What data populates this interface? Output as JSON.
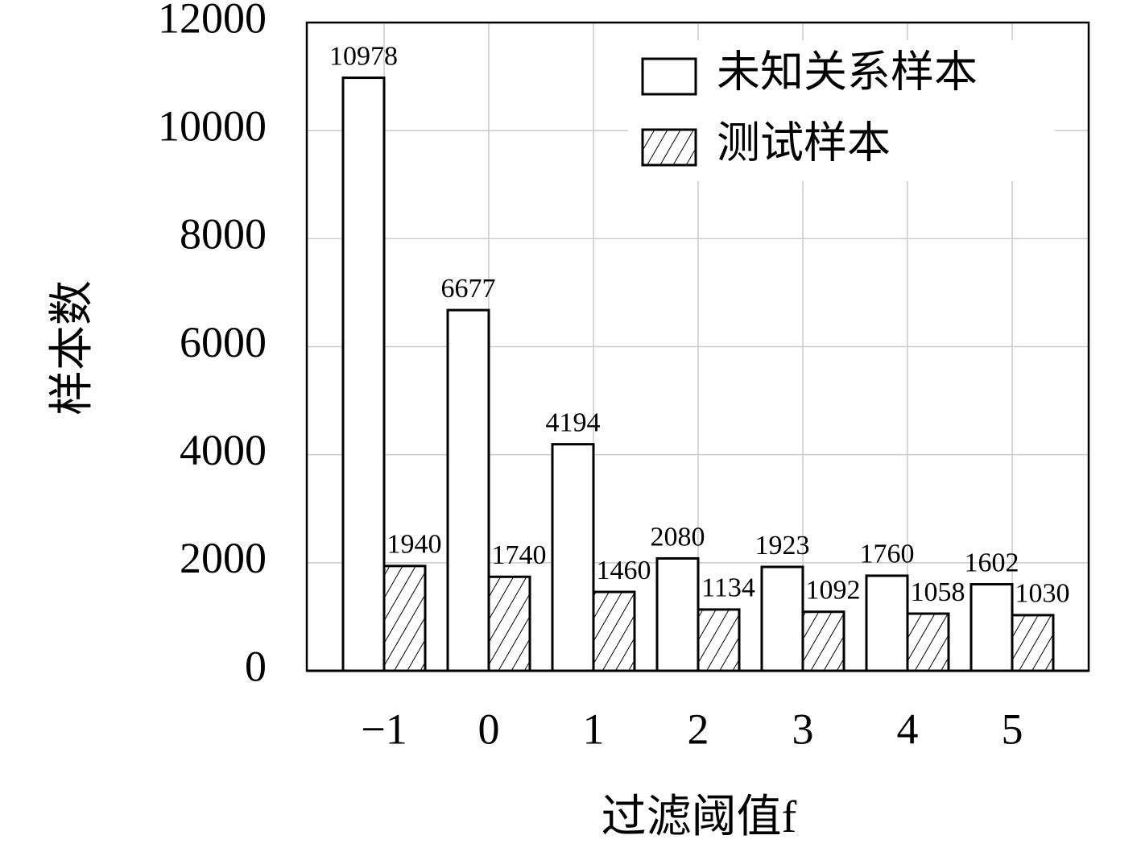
{
  "chart_data": {
    "type": "bar",
    "x_label": "过滤阈值f",
    "y_label": "样本数",
    "categories": [
      "−1",
      "0",
      "1",
      "2",
      "3",
      "4",
      "5"
    ],
    "series": [
      {
        "name": "未知关系样本",
        "color": "#ffffff",
        "pattern": "none",
        "values": [
          10978,
          6677,
          4194,
          2080,
          1923,
          1760,
          1602
        ]
      },
      {
        "name": "测试样本",
        "color": "#ffffff",
        "pattern": "hatch",
        "values": [
          1940,
          1740,
          1460,
          1134,
          1092,
          1058,
          1030
        ]
      }
    ],
    "ylim": [
      0,
      12000
    ],
    "yticks": [
      0,
      2000,
      4000,
      6000,
      8000,
      10000,
      12000
    ],
    "grid": true,
    "legend": "upper right"
  }
}
